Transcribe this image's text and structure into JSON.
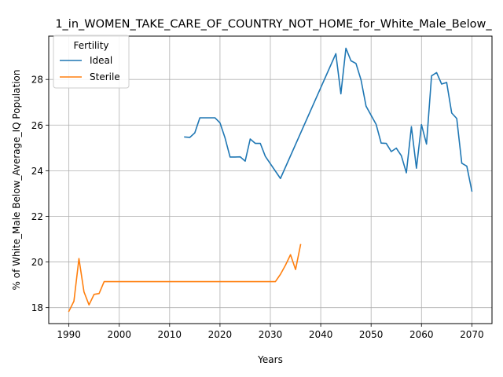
{
  "chart_data": {
    "type": "line",
    "title": "1_in_WOMEN_TAKE_CARE_OF_COUNTRY_NOT_HOME_for_White_Male_Below_",
    "xlabel": "Years",
    "ylabel": "% of White_Male Below_Average_IQ Population",
    "xlim": [
      1986.0,
      2074.0
    ],
    "ylim": [
      17.3,
      29.9
    ],
    "xticks": [
      1990,
      2000,
      2010,
      2020,
      2030,
      2040,
      2050,
      2060,
      2070
    ],
    "yticks": [
      18,
      20,
      22,
      24,
      26,
      28
    ],
    "grid": true,
    "legend": {
      "title": "Fertility",
      "placement": "top-left"
    },
    "series": [
      {
        "name": "Ideal",
        "color": "#1f77b4",
        "points": [
          [
            2013,
            25.48
          ],
          [
            2014,
            25.46
          ],
          [
            2015,
            25.66
          ],
          [
            2016,
            26.32
          ],
          [
            2017,
            26.32
          ],
          [
            2018,
            26.32
          ],
          [
            2019,
            26.32
          ],
          [
            2020,
            26.1
          ],
          [
            2021,
            25.44
          ],
          [
            2022,
            24.6
          ],
          [
            2023,
            24.6
          ],
          [
            2024,
            24.61
          ],
          [
            2025,
            24.42
          ],
          [
            2026,
            25.39
          ],
          [
            2027,
            25.2
          ],
          [
            2028,
            25.2
          ],
          [
            2029,
            24.63
          ],
          [
            2032,
            23.66
          ],
          [
            2043,
            29.13
          ],
          [
            2044,
            27.37
          ],
          [
            2045,
            29.37
          ],
          [
            2046,
            28.82
          ],
          [
            2047,
            28.7
          ],
          [
            2048,
            27.98
          ],
          [
            2049,
            26.83
          ],
          [
            2051,
            26.03
          ],
          [
            2052,
            25.21
          ],
          [
            2053,
            25.2
          ],
          [
            2054,
            24.84
          ],
          [
            2055,
            24.99
          ],
          [
            2056,
            24.66
          ],
          [
            2057,
            23.91
          ],
          [
            2058,
            25.93
          ],
          [
            2059,
            24.11
          ],
          [
            2060,
            26.02
          ],
          [
            2061,
            25.17
          ],
          [
            2062,
            28.16
          ],
          [
            2063,
            28.3
          ],
          [
            2064,
            27.8
          ],
          [
            2065,
            27.87
          ],
          [
            2066,
            26.53
          ],
          [
            2067,
            26.29
          ],
          [
            2068,
            24.33
          ],
          [
            2069,
            24.2
          ],
          [
            2070,
            23.11
          ]
        ]
      },
      {
        "name": "Sterile",
        "color": "#ff7f0e",
        "points": [
          [
            1990,
            17.84
          ],
          [
            1991,
            18.28
          ],
          [
            1992,
            20.15
          ],
          [
            1993,
            18.69
          ],
          [
            1994,
            18.12
          ],
          [
            1995,
            18.58
          ],
          [
            1996,
            18.62
          ],
          [
            1997,
            19.14
          ],
          [
            1998,
            19.14
          ],
          [
            2000,
            19.14
          ],
          [
            2010,
            19.14
          ],
          [
            2020,
            19.14
          ],
          [
            2031,
            19.14
          ],
          [
            2032,
            19.46
          ],
          [
            2033,
            19.86
          ],
          [
            2034,
            20.32
          ],
          [
            2035,
            19.67
          ],
          [
            2036,
            20.76
          ]
        ]
      }
    ]
  }
}
